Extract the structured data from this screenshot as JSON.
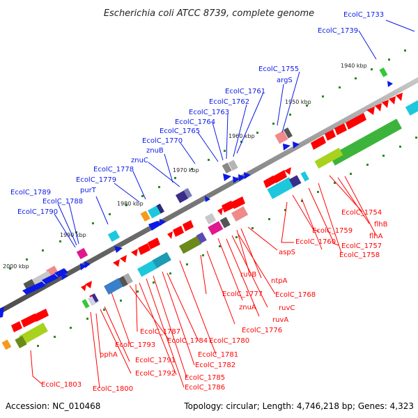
{
  "title": "Escherichia coli ATCC 8739, complete genome",
  "footer": {
    "accession": "Accession: NC_010468",
    "topology": "Topology: circular; Length: 4,746,218 bp; Genes: 4,323"
  },
  "kbp_labels": [
    "1940 kbp",
    "1950 kbp",
    "1960 kbp",
    "1970 kbp",
    "1980 kbp",
    "1990 kbp",
    "2000 kbp"
  ],
  "colors": {
    "forward_label": "#0a19e6",
    "reverse_label": "#ff0000",
    "backbone": "#7a7a7a"
  },
  "gene_labels": {
    "forward": [
      "EcolC_1733",
      "EcolC_1739",
      "EcolC_1755",
      "argS",
      "EcolC_1761",
      "EcolC_1762",
      "EcolC_1763",
      "EcolC_1764",
      "EcolC_1765",
      "EcolC_1770",
      "znuB",
      "znuC",
      "EcolC_1778",
      "EcolC_1779",
      "purT",
      "EcolC_1789",
      "EcolC_1788",
      "EcolC_1790"
    ],
    "reverse": [
      "EcolC_1754",
      "flhB",
      "flhA",
      "EcolC_1759",
      "EcolC_1757",
      "EcolC_1760",
      "EcolC_1758",
      "aspS",
      "ruvB",
      "ntpA",
      "EcolC_1777",
      "EcolC_1768",
      "ruvC",
      "znuA",
      "ruvA",
      "EcolC_1776",
      "EcolC_1787",
      "EcolC_1780",
      "EcolC_1784",
      "EcolC_1793",
      "pphA",
      "EcolC_1781",
      "EcolC_1791",
      "EcolC_1782",
      "EcolC_1792",
      "EcolC_1785",
      "EcolC_1786",
      "EcolC_1803",
      "EcolC_1800"
    ]
  }
}
